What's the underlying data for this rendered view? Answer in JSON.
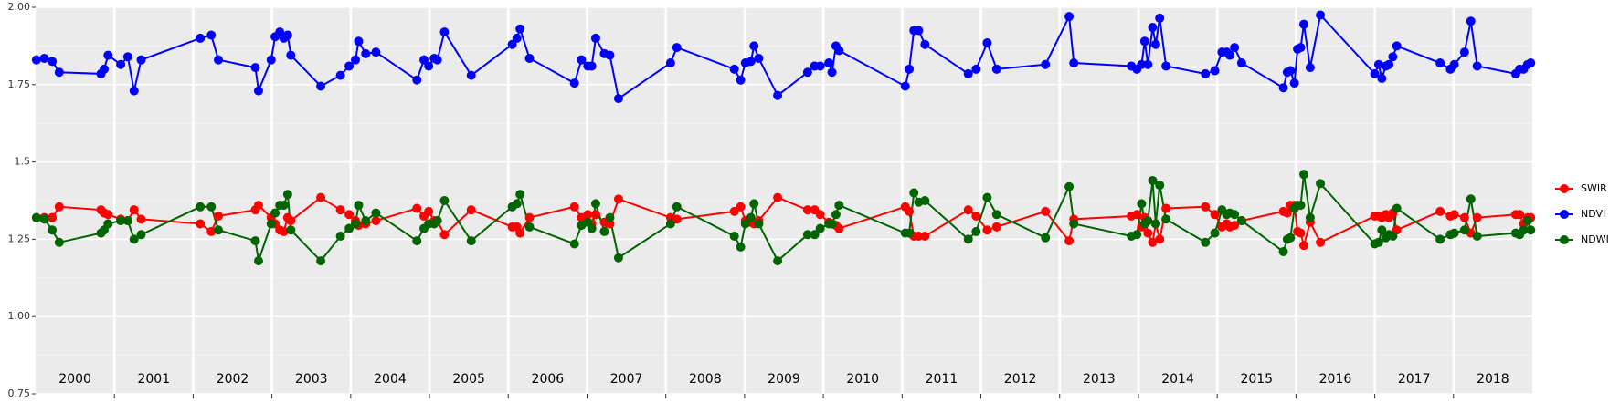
{
  "chart_data": {
    "type": "line",
    "x": [
      2000.01,
      2000.11,
      2000.21,
      2000.3,
      2000.83,
      2000.87,
      2000.92,
      2001.08,
      2001.17,
      2001.25,
      2001.34,
      2002.09,
      2002.23,
      2002.32,
      2002.79,
      2002.83,
      2002.99,
      2003.04,
      2003.1,
      2003.15,
      2003.2,
      2003.24,
      2003.62,
      2003.87,
      2003.98,
      2004.06,
      2004.1,
      2004.19,
      2004.32,
      2004.84,
      2004.93,
      2004.99,
      2005.06,
      2005.1,
      2005.19,
      2005.53,
      2006.05,
      2006.11,
      2006.15,
      2006.27,
      2006.84,
      2006.93,
      2007.01,
      2007.06,
      2007.11,
      2007.22,
      2007.29,
      2007.4,
      2008.06,
      2008.14,
      2008.87,
      2008.95,
      2009.01,
      2009.08,
      2009.12,
      2009.18,
      2009.42,
      2009.8,
      2009.89,
      2009.96,
      2010.07,
      2010.11,
      2010.16,
      2010.2,
      2011.04,
      2011.09,
      2011.15,
      2011.21,
      2011.29,
      2011.84,
      2011.94,
      2012.08,
      2012.2,
      2012.82,
      2013.12,
      2013.18,
      2013.91,
      2013.98,
      2014.04,
      2014.08,
      2014.12,
      2014.18,
      2014.22,
      2014.27,
      2014.35,
      2014.85,
      2014.97,
      2015.06,
      2015.12,
      2015.16,
      2015.22,
      2015.31,
      2015.84,
      2015.89,
      2015.93,
      2015.98,
      2016.02,
      2016.06,
      2016.1,
      2016.18,
      2016.31,
      2017.0,
      2017.05,
      2017.09,
      2017.14,
      2017.18,
      2017.23,
      2017.28,
      2017.83,
      2017.96,
      2018.01,
      2018.14,
      2018.22,
      2018.3,
      2018.79,
      2018.84,
      2018.89,
      2018.94,
      2018.98
    ],
    "series": [
      {
        "name": "SWIR",
        "color": "#ff0000",
        "values": [
          1.32,
          1.32,
          1.32,
          1.355,
          1.345,
          1.335,
          1.33,
          1.315,
          1.31,
          1.345,
          1.315,
          1.3,
          1.275,
          1.325,
          1.345,
          1.36,
          1.32,
          1.3,
          1.28,
          1.275,
          1.32,
          1.31,
          1.385,
          1.345,
          1.33,
          1.31,
          1.295,
          1.3,
          1.31,
          1.35,
          1.325,
          1.34,
          1.31,
          1.31,
          1.265,
          1.345,
          1.29,
          1.29,
          1.27,
          1.32,
          1.355,
          1.32,
          1.33,
          1.3,
          1.33,
          1.305,
          1.3,
          1.38,
          1.32,
          1.315,
          1.34,
          1.355,
          1.31,
          1.305,
          1.3,
          1.31,
          1.385,
          1.345,
          1.345,
          1.33,
          1.305,
          1.3,
          1.295,
          1.285,
          1.355,
          1.34,
          1.26,
          1.26,
          1.26,
          1.345,
          1.325,
          1.28,
          1.29,
          1.34,
          1.245,
          1.315,
          1.325,
          1.33,
          1.29,
          1.32,
          1.27,
          1.24,
          1.3,
          1.25,
          1.35,
          1.355,
          1.33,
          1.29,
          1.3,
          1.29,
          1.295,
          1.31,
          1.34,
          1.335,
          1.36,
          1.36,
          1.275,
          1.27,
          1.23,
          1.305,
          1.24,
          1.325,
          1.325,
          1.32,
          1.33,
          1.32,
          1.335,
          1.28,
          1.34,
          1.325,
          1.33,
          1.32,
          1.27,
          1.32,
          1.33,
          1.33,
          1.3,
          1.32,
          1.32
        ]
      },
      {
        "name": "NDVI",
        "color": "#0000ff",
        "values": [
          1.83,
          1.835,
          1.825,
          1.79,
          1.785,
          1.8,
          1.845,
          1.815,
          1.84,
          1.73,
          1.83,
          1.9,
          1.91,
          1.83,
          1.805,
          1.73,
          1.83,
          1.905,
          1.92,
          1.9,
          1.91,
          1.845,
          1.745,
          1.78,
          1.81,
          1.83,
          1.89,
          1.85,
          1.855,
          1.765,
          1.83,
          1.81,
          1.835,
          1.83,
          1.92,
          1.78,
          1.88,
          1.9,
          1.93,
          1.835,
          1.755,
          1.83,
          1.81,
          1.81,
          1.9,
          1.85,
          1.845,
          1.705,
          1.82,
          1.87,
          1.8,
          1.765,
          1.82,
          1.825,
          1.875,
          1.835,
          1.715,
          1.79,
          1.81,
          1.81,
          1.82,
          1.79,
          1.875,
          1.86,
          1.745,
          1.8,
          1.925,
          1.925,
          1.88,
          1.785,
          1.8,
          1.885,
          1.8,
          1.815,
          1.97,
          1.82,
          1.81,
          1.8,
          1.815,
          1.89,
          1.815,
          1.935,
          1.88,
          1.965,
          1.81,
          1.785,
          1.795,
          1.855,
          1.855,
          1.845,
          1.87,
          1.82,
          1.74,
          1.79,
          1.795,
          1.755,
          1.865,
          1.87,
          1.945,
          1.805,
          1.975,
          1.785,
          1.815,
          1.77,
          1.81,
          1.815,
          1.84,
          1.875,
          1.82,
          1.8,
          1.815,
          1.855,
          1.955,
          1.81,
          1.785,
          1.8,
          1.8,
          1.815,
          1.82
        ]
      },
      {
        "name": "NDWI",
        "color": "#006400",
        "values": [
          1.32,
          1.315,
          1.28,
          1.24,
          1.27,
          1.28,
          1.3,
          1.31,
          1.31,
          1.25,
          1.265,
          1.355,
          1.355,
          1.28,
          1.245,
          1.18,
          1.3,
          1.335,
          1.36,
          1.36,
          1.395,
          1.28,
          1.18,
          1.26,
          1.285,
          1.3,
          1.36,
          1.31,
          1.335,
          1.245,
          1.285,
          1.3,
          1.3,
          1.31,
          1.375,
          1.245,
          1.355,
          1.365,
          1.395,
          1.29,
          1.235,
          1.295,
          1.305,
          1.285,
          1.365,
          1.275,
          1.32,
          1.19,
          1.3,
          1.355,
          1.26,
          1.225,
          1.3,
          1.32,
          1.365,
          1.3,
          1.18,
          1.265,
          1.265,
          1.285,
          1.3,
          1.3,
          1.33,
          1.36,
          1.27,
          1.27,
          1.4,
          1.37,
          1.375,
          1.25,
          1.275,
          1.385,
          1.33,
          1.255,
          1.42,
          1.3,
          1.26,
          1.265,
          1.365,
          1.3,
          1.31,
          1.44,
          1.3,
          1.425,
          1.315,
          1.24,
          1.27,
          1.345,
          1.33,
          1.335,
          1.33,
          1.31,
          1.21,
          1.25,
          1.255,
          1.35,
          1.36,
          1.36,
          1.46,
          1.32,
          1.43,
          1.235,
          1.24,
          1.28,
          1.255,
          1.265,
          1.26,
          1.35,
          1.25,
          1.265,
          1.27,
          1.28,
          1.38,
          1.26,
          1.27,
          1.265,
          1.28,
          1.31,
          1.28
        ]
      }
    ],
    "xlim": [
      2000,
      2019
    ],
    "xticks": [
      {
        "value": 2000.5,
        "label": "2000"
      },
      {
        "value": 2001.5,
        "label": "2001"
      },
      {
        "value": 2002.5,
        "label": "2002"
      },
      {
        "value": 2003.5,
        "label": "2003"
      },
      {
        "value": 2004.5,
        "label": "2004"
      },
      {
        "value": 2005.5,
        "label": "2005"
      },
      {
        "value": 2006.5,
        "label": "2006"
      },
      {
        "value": 2007.5,
        "label": "2007"
      },
      {
        "value": 2008.5,
        "label": "2008"
      },
      {
        "value": 2009.5,
        "label": "2009"
      },
      {
        "value": 2010.5,
        "label": "2010"
      },
      {
        "value": 2011.5,
        "label": "2011"
      },
      {
        "value": 2012.5,
        "label": "2012"
      },
      {
        "value": 2013.5,
        "label": "2013"
      },
      {
        "value": 2014.5,
        "label": "2014"
      },
      {
        "value": 2015.5,
        "label": "2015"
      },
      {
        "value": 2016.5,
        "label": "2016"
      },
      {
        "value": 2017.5,
        "label": "2017"
      },
      {
        "value": 2018.5,
        "label": "2018"
      }
    ],
    "xgrid": [
      2001,
      2002,
      2003,
      2004,
      2005,
      2006,
      2007,
      2008,
      2009,
      2010,
      2011,
      2012,
      2013,
      2014,
      2015,
      2016,
      2017,
      2018
    ],
    "ylim": [
      0.75,
      2.0
    ],
    "yticks": [
      0.75,
      {
        "value": 1.0,
        "label": "1.00"
      },
      1.25,
      1.5,
      1.75,
      {
        "value": 2.0,
        "label": "2.00"
      }
    ],
    "grid": true,
    "legend": "right"
  }
}
